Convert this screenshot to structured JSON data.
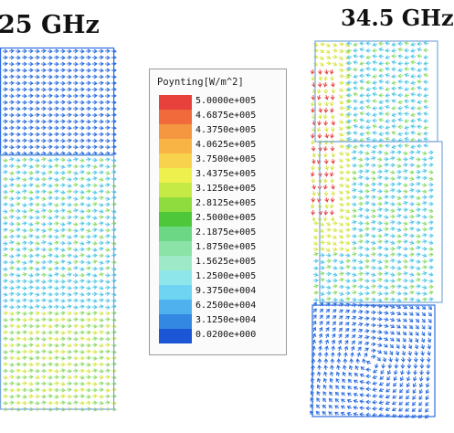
{
  "titles": {
    "left": "25 GHz",
    "right": "34.5 GHz"
  },
  "legend": {
    "title": "Poynting[W/m^2]",
    "entries": [
      {
        "label": "5.0000e+005",
        "color": "#e8403a"
      },
      {
        "label": "4.6875e+005",
        "color": "#f06a3c"
      },
      {
        "label": "4.3750e+005",
        "color": "#f59640"
      },
      {
        "label": "4.0625e+005",
        "color": "#f8b545"
      },
      {
        "label": "3.7500e+005",
        "color": "#f8d24c"
      },
      {
        "label": "3.4375e+005",
        "color": "#eef04d"
      },
      {
        "label": "3.1250e+005",
        "color": "#c6ea45"
      },
      {
        "label": "2.8125e+005",
        "color": "#8fdc3e"
      },
      {
        "label": "2.5000e+005",
        "color": "#4ec83a"
      },
      {
        "label": "2.1875e+005",
        "color": "#6cd784"
      },
      {
        "label": "1.8750e+005",
        "color": "#8be3a8"
      },
      {
        "label": "1.5625e+005",
        "color": "#9eeac8"
      },
      {
        "label": "1.2500e+005",
        "color": "#8fe6ea"
      },
      {
        "label": "9.3750e+004",
        "color": "#6fd3f2"
      },
      {
        "label": "6.2500e+004",
        "color": "#4fb2ee"
      },
      {
        "label": "3.1250e+004",
        "color": "#3388e2"
      },
      {
        "label": "0.0200e+000",
        "color": "#1a56d6"
      }
    ]
  },
  "arrow_colors": {
    "blue": "#2f6fe0",
    "cyan": "#55c8e8",
    "green": "#8fdc6a",
    "yellow": "#d8e64a",
    "red": "#e84848"
  },
  "icons": {
    "arrow": "arrow-right-glyph"
  }
}
